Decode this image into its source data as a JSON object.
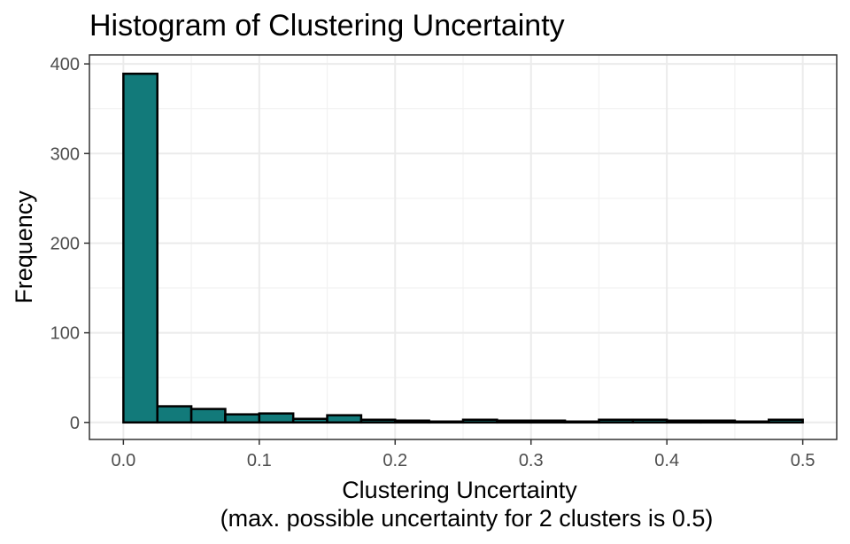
{
  "chart_data": {
    "type": "bar",
    "title": "Histogram of Clustering Uncertainty",
    "xlabel": "Clustering Uncertainty",
    "xlabel_line2": "(max. possible uncertainty for 2 clusters is 0.5)",
    "ylabel": "Frequency",
    "bar_fill": "#127a7a",
    "bar_outline": "#000000",
    "grid": true,
    "xlim": [
      -0.025,
      0.525
    ],
    "ylim": [
      -19,
      410
    ],
    "bin_width": 0.025,
    "x_ticks": [
      {
        "value": 0.0,
        "label": "0.0"
      },
      {
        "value": 0.1,
        "label": "0.1"
      },
      {
        "value": 0.2,
        "label": "0.2"
      },
      {
        "value": 0.3,
        "label": "0.3"
      },
      {
        "value": 0.4,
        "label": "0.4"
      },
      {
        "value": 0.5,
        "label": "0.5"
      }
    ],
    "y_ticks": [
      {
        "value": 0,
        "label": "0"
      },
      {
        "value": 100,
        "label": "100"
      },
      {
        "value": 200,
        "label": "200"
      },
      {
        "value": 300,
        "label": "300"
      },
      {
        "value": 400,
        "label": "400"
      }
    ],
    "bins": [
      {
        "start": 0.0,
        "end": 0.025,
        "count": 389
      },
      {
        "start": 0.025,
        "end": 0.05,
        "count": 18
      },
      {
        "start": 0.05,
        "end": 0.075,
        "count": 15
      },
      {
        "start": 0.075,
        "end": 0.1,
        "count": 9
      },
      {
        "start": 0.1,
        "end": 0.125,
        "count": 10
      },
      {
        "start": 0.125,
        "end": 0.15,
        "count": 4
      },
      {
        "start": 0.15,
        "end": 0.175,
        "count": 8
      },
      {
        "start": 0.175,
        "end": 0.2,
        "count": 3
      },
      {
        "start": 0.2,
        "end": 0.225,
        "count": 2
      },
      {
        "start": 0.225,
        "end": 0.25,
        "count": 1
      },
      {
        "start": 0.25,
        "end": 0.275,
        "count": 3
      },
      {
        "start": 0.275,
        "end": 0.3,
        "count": 2
      },
      {
        "start": 0.3,
        "end": 0.325,
        "count": 2
      },
      {
        "start": 0.325,
        "end": 0.35,
        "count": 1
      },
      {
        "start": 0.35,
        "end": 0.375,
        "count": 3
      },
      {
        "start": 0.375,
        "end": 0.4,
        "count": 3
      },
      {
        "start": 0.4,
        "end": 0.425,
        "count": 2
      },
      {
        "start": 0.425,
        "end": 0.45,
        "count": 2
      },
      {
        "start": 0.45,
        "end": 0.475,
        "count": 1
      },
      {
        "start": 0.475,
        "end": 0.5,
        "count": 3
      }
    ]
  }
}
